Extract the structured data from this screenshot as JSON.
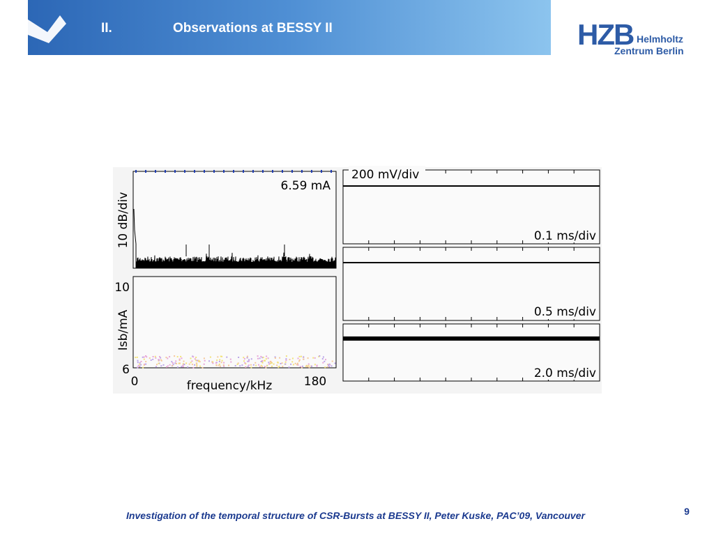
{
  "header": {
    "section_number": "II.",
    "title": "Observations at BESSY II"
  },
  "logo": {
    "mark": "HZB",
    "line1": "Helmholtz",
    "line2": "Zentrum Berlin"
  },
  "figure": {
    "spectrum": {
      "y_label": "10 dB/div",
      "annotation": "6.59 mA"
    },
    "sideband": {
      "y_label": "Isb/mA",
      "y_tick_top": "10",
      "y_tick_bottom": "6",
      "x_tick_left": "0",
      "x_tick_right": "180",
      "x_label": "frequency/kHz"
    },
    "scope": {
      "scale": "200 mV/div",
      "time_1": "0.1 ms/div",
      "time_2": "0.5 ms/div",
      "time_3": "2.0 ms/div"
    }
  },
  "footer": {
    "text": "Investigation of the temporal structure of CSR-Bursts at BESSY II, Peter Kuske, PAC’09, Vancouver",
    "page_number": "9"
  }
}
